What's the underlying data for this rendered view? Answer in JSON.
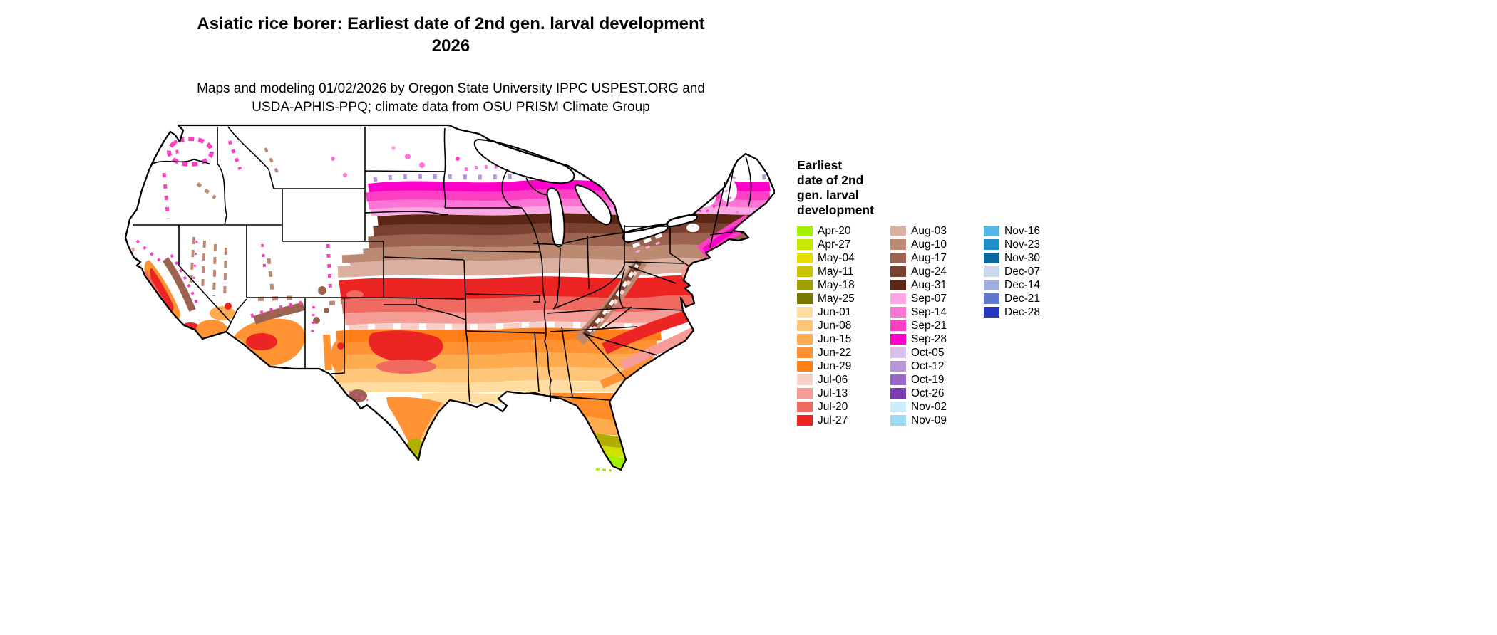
{
  "title": {
    "line1": "Asiatic rice borer: Earliest date of 2nd gen. larval development",
    "line2": "2026"
  },
  "subtitle": {
    "line1": "Maps and modeling 01/02/2026 by Oregon State University IPPC USPEST.ORG and",
    "line2": "USDA-APHIS-PPQ; climate data from OSU PRISM Climate Group"
  },
  "legend": {
    "title_lines": [
      "Earliest",
      "date of 2nd",
      "gen. larval",
      "development"
    ],
    "columns": [
      [
        {
          "label": "Apr-20",
          "color": "#a0f000"
        },
        {
          "label": "Apr-27",
          "color": "#c8e800"
        },
        {
          "label": "May-04",
          "color": "#e6de00"
        },
        {
          "label": "May-11",
          "color": "#c8c400"
        },
        {
          "label": "May-18",
          "color": "#a0a000"
        },
        {
          "label": "May-25",
          "color": "#787800"
        },
        {
          "label": "Jun-01",
          "color": "#ffdca0"
        },
        {
          "label": "Jun-08",
          "color": "#ffc578"
        },
        {
          "label": "Jun-15",
          "color": "#ffab50"
        },
        {
          "label": "Jun-22",
          "color": "#ff9232"
        },
        {
          "label": "Jun-29",
          "color": "#ff7f18"
        },
        {
          "label": "Jul-06",
          "color": "#f8cfc8"
        },
        {
          "label": "Jul-13",
          "color": "#f69c96"
        },
        {
          "label": "Jul-20",
          "color": "#f16a62"
        },
        {
          "label": "Jul-27",
          "color": "#ec2424"
        }
      ],
      [
        {
          "label": "Aug-03",
          "color": "#dcb0a0"
        },
        {
          "label": "Aug-10",
          "color": "#bc8a72"
        },
        {
          "label": "Aug-17",
          "color": "#9c6450"
        },
        {
          "label": "Aug-24",
          "color": "#7a4030"
        },
        {
          "label": "Aug-31",
          "color": "#5c2614"
        },
        {
          "label": "Sep-07",
          "color": "#fca8e4"
        },
        {
          "label": "Sep-14",
          "color": "#fc74d4"
        },
        {
          "label": "Sep-21",
          "color": "#fc40c4"
        },
        {
          "label": "Sep-28",
          "color": "#ff00c8"
        },
        {
          "label": "Oct-05",
          "color": "#d8c0ea"
        },
        {
          "label": "Oct-12",
          "color": "#b896d8"
        },
        {
          "label": "Oct-19",
          "color": "#9868c4"
        },
        {
          "label": "Oct-26",
          "color": "#7a3cb0"
        },
        {
          "label": "Nov-02",
          "color": "#ccecfa"
        },
        {
          "label": "Nov-09",
          "color": "#9cdcf4"
        }
      ],
      [
        {
          "label": "Nov-16",
          "color": "#54b8e4"
        },
        {
          "label": "Nov-23",
          "color": "#2090c8"
        },
        {
          "label": "Nov-30",
          "color": "#0868a0"
        },
        {
          "label": "Dec-07",
          "color": "#ccd8ec"
        },
        {
          "label": "Dec-14",
          "color": "#a0b0dc"
        },
        {
          "label": "Dec-21",
          "color": "#6078cc"
        },
        {
          "label": "Dec-28",
          "color": "#2838c0"
        }
      ]
    ]
  }
}
